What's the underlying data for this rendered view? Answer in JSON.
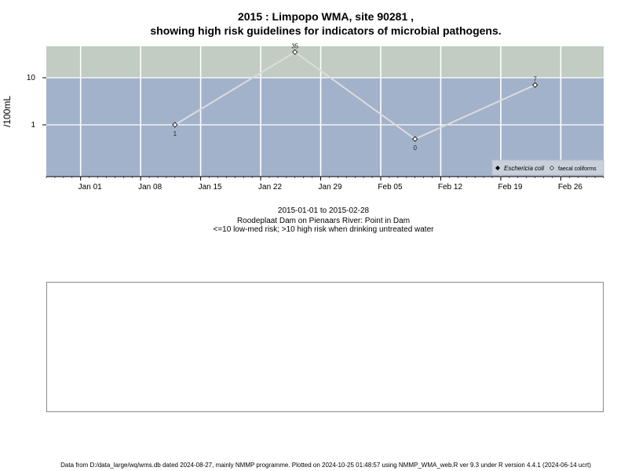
{
  "title_line1": "2015 : Limpopo WMA, site 90281 ,",
  "title_line2": "showing high risk guidelines for indicators of microbial pathogens.",
  "subtitle": {
    "date_range": "2015-01-01 to 2015-02-28",
    "location": "Roodeplaat Dam on Pienaars River: Point in Dam",
    "risk_note": "<=10 low-med risk; >10 high risk when drinking untreated water"
  },
  "footer": "Data from D:/data_large/wq/wms.db dated 2024-08-27, mainly NMMP programme. Plotted on 2024-10-25 01:48:57 using NMMP_WMA_web.R ver 9.3 under R version 4.4.1 (2024-06-14 ucrt)",
  "colors": {
    "high_risk_band": "#c2ccc2",
    "low_risk_band": "#a3b2cb",
    "series_line": "#dcdcdc",
    "grid": "#ffffff"
  },
  "chart_data": {
    "type": "line",
    "ylabel": "/100mL",
    "y_scale": "log",
    "y_ticks": [
      1,
      10
    ],
    "x_range": [
      "2014-12-28",
      "2015-03-03"
    ],
    "x_ticks": [
      {
        "date": "2015-01-01",
        "label": "Jan 01"
      },
      {
        "date": "2015-01-08",
        "label": "Jan 08"
      },
      {
        "date": "2015-01-15",
        "label": "Jan 15"
      },
      {
        "date": "2015-01-22",
        "label": "Jan 22"
      },
      {
        "date": "2015-01-29",
        "label": "Jan 29"
      },
      {
        "date": "2015-02-05",
        "label": "Feb 05"
      },
      {
        "date": "2015-02-12",
        "label": "Feb 12"
      },
      {
        "date": "2015-02-19",
        "label": "Feb 19"
      },
      {
        "date": "2015-02-26",
        "label": "Feb 26"
      }
    ],
    "threshold": 10,
    "series": [
      {
        "name": "faecal coliforms",
        "points": [
          {
            "date": "2015-01-12",
            "value": 1,
            "label": "1"
          },
          {
            "date": "2015-01-26",
            "value": 35,
            "label": "35"
          },
          {
            "date": "2015-02-09",
            "value": 0,
            "label": "0"
          },
          {
            "date": "2015-02-23",
            "value": 7,
            "label": "7"
          }
        ]
      }
    ],
    "legend": {
      "position": "bottom-right",
      "entries": [
        "Eschericia coli",
        "faecal coliforms"
      ]
    }
  }
}
